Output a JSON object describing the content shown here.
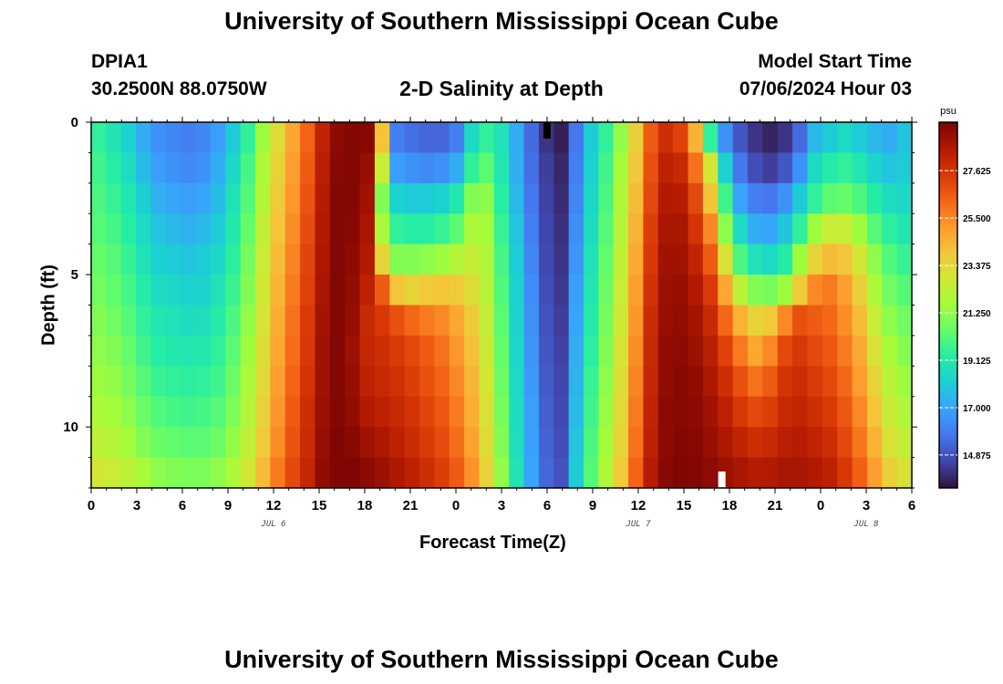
{
  "page": {
    "title": "University of Southern Mississippi Ocean Cube",
    "bottom_title": "University of Southern Mississippi Ocean Cube",
    "station": "DPIA1",
    "coords": "30.2500N  88.0750W",
    "plot_title": "2-D Salinity at Depth",
    "model_start_label": "Model Start Time",
    "model_start_value": "07/06/2024 Hour 03"
  },
  "colors": {
    "background": "#ffffff",
    "text": "#000000",
    "colormap": [
      "#30123b",
      "#4145ab",
      "#4675ed",
      "#39a2fc",
      "#1bcfd4",
      "#24eca6",
      "#61fc6c",
      "#a4fc3b",
      "#d1e834",
      "#f3c63a",
      "#fe9b2d",
      "#f36315",
      "#d93806",
      "#b11901",
      "#7a0403"
    ]
  },
  "chart_data": {
    "type": "heatmap",
    "title": "2-D Salinity at Depth",
    "xlabel": "Forecast Time(Z)",
    "ylabel": "Depth (ft)",
    "x_tick_labels": [
      "0",
      "3",
      "6",
      "9",
      "12",
      "15",
      "18",
      "21",
      "0",
      "3",
      "6",
      "9",
      "12",
      "15",
      "18",
      "21",
      "0",
      "3",
      "6"
    ],
    "x_hours": [
      0,
      3,
      6,
      9,
      12,
      15,
      18,
      21,
      24,
      27,
      30,
      33,
      36,
      39,
      42,
      45,
      48,
      51,
      54
    ],
    "xlim": [
      0,
      54
    ],
    "date_labels": [
      {
        "text": "JUL 6",
        "hour": 12
      },
      {
        "text": "JUL 7",
        "hour": 36
      },
      {
        "text": "JUL 8",
        "hour": 51
      }
    ],
    "y_ticks": [
      0,
      5,
      10
    ],
    "ylim": [
      0,
      12
    ],
    "y_inverted": true,
    "colorbar": {
      "unit": "psu",
      "ticks": [
        "27.625",
        "25.500",
        "23.375",
        "21.250",
        "19.125",
        "17.000",
        "14.875"
      ],
      "tick_values": [
        27.625,
        25.5,
        23.375,
        21.25,
        19.125,
        17.0,
        14.875
      ],
      "range": [
        13.4,
        29.8
      ]
    },
    "markers": [
      {
        "hour": 30,
        "position": "top",
        "color": "#000000"
      },
      {
        "hour": 41.5,
        "position": "bottom",
        "color": "#ffffff"
      }
    ],
    "grid": {
      "time_hours": [
        0,
        1,
        2,
        3,
        4,
        5,
        6,
        7,
        8,
        9,
        10,
        11,
        12,
        13,
        14,
        15,
        16,
        17,
        18,
        19,
        20,
        21,
        22,
        23,
        24,
        25,
        26,
        27,
        28,
        29,
        30,
        31,
        32,
        33,
        34,
        35,
        36,
        37,
        38,
        39,
        40,
        41,
        42,
        43,
        44,
        45,
        46,
        47,
        48,
        49,
        50,
        51,
        52,
        53,
        54
      ],
      "depth_ft": [
        0.5,
        1.5,
        2.5,
        3.5,
        4.5,
        5.5,
        6.5,
        7.5,
        8.5,
        9.5,
        10.5,
        11.5
      ],
      "salinity_psu": [
        [
          19.5,
          18.9,
          18.2,
          17.2,
          16.5,
          16.2,
          16.0,
          16.2,
          16.8,
          18.0,
          19.5,
          21.5,
          23.2,
          24.8,
          26.3,
          28.2,
          29.4,
          29.6,
          29.5,
          24.0,
          16.0,
          15.6,
          15.4,
          15.4,
          16.0,
          18.5,
          19.5,
          18.8,
          17.2,
          15.5,
          14.2,
          13.7,
          15.8,
          18.0,
          19.5,
          21.3,
          23.6,
          26.5,
          27.8,
          27.2,
          24.5,
          19.5,
          16.5,
          15.0,
          14.2,
          13.8,
          14.2,
          15.5,
          17.5,
          18.0,
          18.5,
          18.0,
          17.5,
          17.2,
          17.8
        ],
        [
          19.8,
          19.3,
          18.6,
          17.6,
          16.8,
          16.5,
          16.3,
          16.5,
          17.2,
          18.4,
          19.9,
          21.8,
          23.5,
          25.0,
          26.5,
          28.4,
          29.5,
          29.6,
          29.2,
          22.5,
          16.8,
          16.5,
          16.3,
          16.5,
          17.2,
          19.5,
          20.3,
          19.0,
          17.2,
          15.6,
          14.4,
          13.9,
          16.0,
          18.2,
          19.8,
          21.6,
          23.9,
          26.8,
          28.3,
          28.0,
          26.0,
          22.8,
          18.2,
          15.8,
          14.8,
          14.4,
          15.0,
          16.5,
          18.5,
          19.2,
          19.5,
          19.0,
          18.3,
          17.8,
          18.0
        ],
        [
          20.0,
          19.6,
          19.0,
          18.1,
          17.3,
          17.0,
          16.8,
          17.0,
          17.6,
          18.8,
          20.2,
          22.0,
          23.8,
          25.2,
          26.7,
          28.5,
          29.6,
          29.6,
          29.0,
          21.0,
          18.2,
          18.0,
          18.0,
          18.2,
          19.0,
          21.0,
          21.2,
          19.3,
          17.5,
          15.8,
          14.5,
          14.0,
          16.2,
          18.4,
          20.0,
          21.9,
          24.2,
          27.0,
          28.6,
          28.5,
          27.0,
          24.0,
          19.8,
          17.0,
          16.0,
          15.8,
          16.5,
          18.0,
          19.5,
          20.3,
          20.5,
          20.0,
          19.2,
          18.6,
          18.4
        ],
        [
          20.2,
          19.9,
          19.3,
          18.5,
          17.8,
          17.5,
          17.3,
          17.5,
          18.0,
          19.1,
          20.5,
          22.3,
          24.0,
          25.4,
          26.9,
          28.6,
          29.6,
          29.5,
          28.8,
          21.8,
          19.5,
          19.3,
          19.3,
          19.6,
          20.3,
          21.8,
          21.6,
          19.6,
          17.8,
          16.0,
          14.6,
          14.1,
          16.4,
          18.6,
          20.2,
          22.1,
          24.5,
          27.3,
          28.8,
          28.8,
          27.6,
          25.5,
          21.2,
          18.5,
          17.2,
          17.0,
          17.8,
          19.5,
          21.5,
          22.5,
          22.5,
          21.5,
          20.2,
          19.4,
          19.0
        ],
        [
          20.5,
          20.2,
          19.6,
          18.8,
          18.2,
          18.0,
          17.8,
          18.0,
          18.4,
          19.4,
          20.8,
          22.5,
          24.2,
          25.6,
          27.1,
          28.7,
          29.6,
          29.4,
          28.6,
          23.5,
          21.0,
          21.0,
          21.2,
          21.5,
          22.0,
          22.4,
          21.9,
          19.9,
          18.0,
          16.2,
          14.7,
          14.2,
          16.6,
          18.8,
          20.4,
          22.3,
          24.7,
          27.5,
          29.0,
          29.0,
          28.2,
          26.5,
          23.0,
          20.0,
          18.8,
          18.5,
          19.2,
          21.5,
          23.5,
          24.2,
          24.0,
          22.8,
          21.2,
          20.1,
          19.6
        ],
        [
          20.7,
          20.4,
          19.9,
          19.2,
          18.6,
          18.4,
          18.2,
          18.3,
          18.8,
          19.7,
          21.0,
          22.7,
          24.4,
          25.8,
          27.2,
          28.8,
          29.6,
          29.3,
          28.3,
          26.5,
          24.0,
          23.5,
          23.8,
          24.0,
          23.8,
          23.2,
          22.1,
          20.1,
          18.2,
          16.4,
          14.8,
          14.3,
          16.8,
          19.0,
          20.6,
          22.5,
          25.0,
          27.7,
          29.1,
          29.2,
          28.6,
          27.4,
          24.8,
          22.2,
          21.0,
          20.8,
          21.5,
          23.8,
          25.5,
          25.8,
          25.0,
          23.6,
          21.8,
          20.7,
          20.2
        ],
        [
          21.0,
          20.7,
          20.2,
          19.5,
          19.0,
          18.8,
          18.6,
          18.7,
          19.2,
          20.0,
          21.3,
          22.9,
          24.6,
          26.0,
          27.4,
          28.9,
          29.6,
          29.2,
          28.0,
          27.5,
          26.8,
          26.2,
          25.8,
          25.5,
          24.8,
          23.8,
          22.4,
          20.3,
          18.3,
          16.5,
          14.9,
          14.4,
          17.0,
          19.2,
          20.8,
          22.7,
          25.2,
          27.9,
          29.2,
          29.3,
          28.9,
          28.0,
          26.2,
          24.5,
          23.5,
          23.8,
          25.5,
          26.8,
          26.5,
          26.2,
          25.4,
          24.2,
          22.5,
          21.2,
          20.7
        ],
        [
          21.2,
          21.0,
          20.5,
          19.8,
          19.3,
          19.1,
          19.0,
          19.1,
          19.5,
          20.3,
          21.5,
          23.1,
          24.8,
          26.1,
          27.5,
          29.0,
          29.6,
          29.1,
          28.1,
          27.8,
          27.4,
          27.0,
          26.5,
          26.0,
          25.2,
          24.1,
          22.6,
          20.5,
          18.4,
          16.6,
          15.0,
          14.5,
          17.2,
          19.4,
          21.0,
          22.9,
          25.4,
          28.0,
          29.3,
          29.4,
          29.1,
          28.4,
          27.2,
          25.8,
          24.8,
          25.5,
          27.0,
          27.5,
          27.0,
          26.6,
          25.8,
          24.7,
          23.0,
          21.7,
          21.1
        ],
        [
          21.5,
          21.3,
          20.8,
          20.2,
          19.7,
          19.5,
          19.4,
          19.5,
          19.8,
          20.6,
          21.8,
          23.3,
          25.0,
          26.3,
          27.6,
          29.0,
          29.6,
          29.2,
          28.3,
          28.0,
          27.7,
          27.3,
          26.8,
          26.3,
          25.5,
          24.4,
          22.8,
          20.6,
          18.5,
          16.7,
          15.1,
          14.6,
          17.4,
          19.6,
          21.2,
          23.1,
          25.6,
          28.1,
          29.3,
          29.5,
          29.3,
          28.7,
          27.8,
          26.8,
          26.0,
          26.5,
          27.6,
          27.9,
          27.4,
          27.0,
          26.2,
          25.1,
          23.5,
          22.1,
          21.5
        ],
        [
          21.8,
          21.6,
          21.2,
          20.6,
          20.1,
          19.9,
          19.8,
          19.9,
          20.2,
          20.9,
          22.0,
          23.5,
          25.2,
          26.5,
          27.8,
          29.1,
          29.6,
          29.3,
          28.6,
          28.3,
          28.0,
          27.6,
          27.1,
          26.6,
          25.8,
          24.6,
          23.0,
          20.8,
          18.6,
          16.8,
          15.2,
          14.7,
          17.6,
          19.8,
          21.4,
          23.3,
          25.8,
          28.2,
          29.4,
          29.5,
          29.4,
          29.0,
          28.3,
          27.5,
          27.0,
          27.3,
          28.0,
          28.2,
          27.8,
          27.4,
          26.6,
          25.5,
          24.0,
          22.6,
          21.9
        ],
        [
          22.2,
          22.0,
          21.6,
          21.0,
          20.6,
          20.4,
          20.3,
          20.3,
          20.6,
          21.3,
          22.3,
          23.8,
          25.4,
          26.7,
          27.9,
          29.2,
          29.7,
          29.5,
          29.0,
          28.7,
          28.3,
          27.9,
          27.4,
          26.9,
          26.1,
          24.9,
          23.2,
          21.0,
          18.7,
          16.9,
          15.3,
          14.8,
          17.8,
          20.0,
          21.6,
          23.5,
          26.0,
          28.3,
          29.4,
          29.6,
          29.5,
          29.2,
          28.7,
          28.2,
          27.8,
          28.0,
          28.4,
          28.5,
          28.2,
          27.8,
          27.0,
          25.9,
          24.5,
          23.0,
          22.4
        ],
        [
          22.8,
          22.5,
          22.2,
          21.7,
          21.2,
          21.0,
          20.9,
          20.9,
          21.2,
          21.8,
          22.8,
          24.2,
          25.8,
          27.0,
          28.1,
          29.3,
          29.7,
          29.7,
          29.4,
          29.1,
          28.7,
          28.3,
          27.8,
          27.3,
          26.5,
          25.3,
          23.5,
          21.3,
          18.9,
          17.0,
          15.4,
          14.9,
          18.0,
          20.2,
          21.9,
          23.8,
          26.3,
          28.5,
          29.5,
          29.7,
          29.6,
          29.4,
          29.1,
          28.8,
          28.5,
          28.6,
          28.8,
          28.8,
          28.6,
          28.3,
          27.5,
          26.4,
          25.0,
          23.6,
          23.0
        ]
      ]
    }
  }
}
